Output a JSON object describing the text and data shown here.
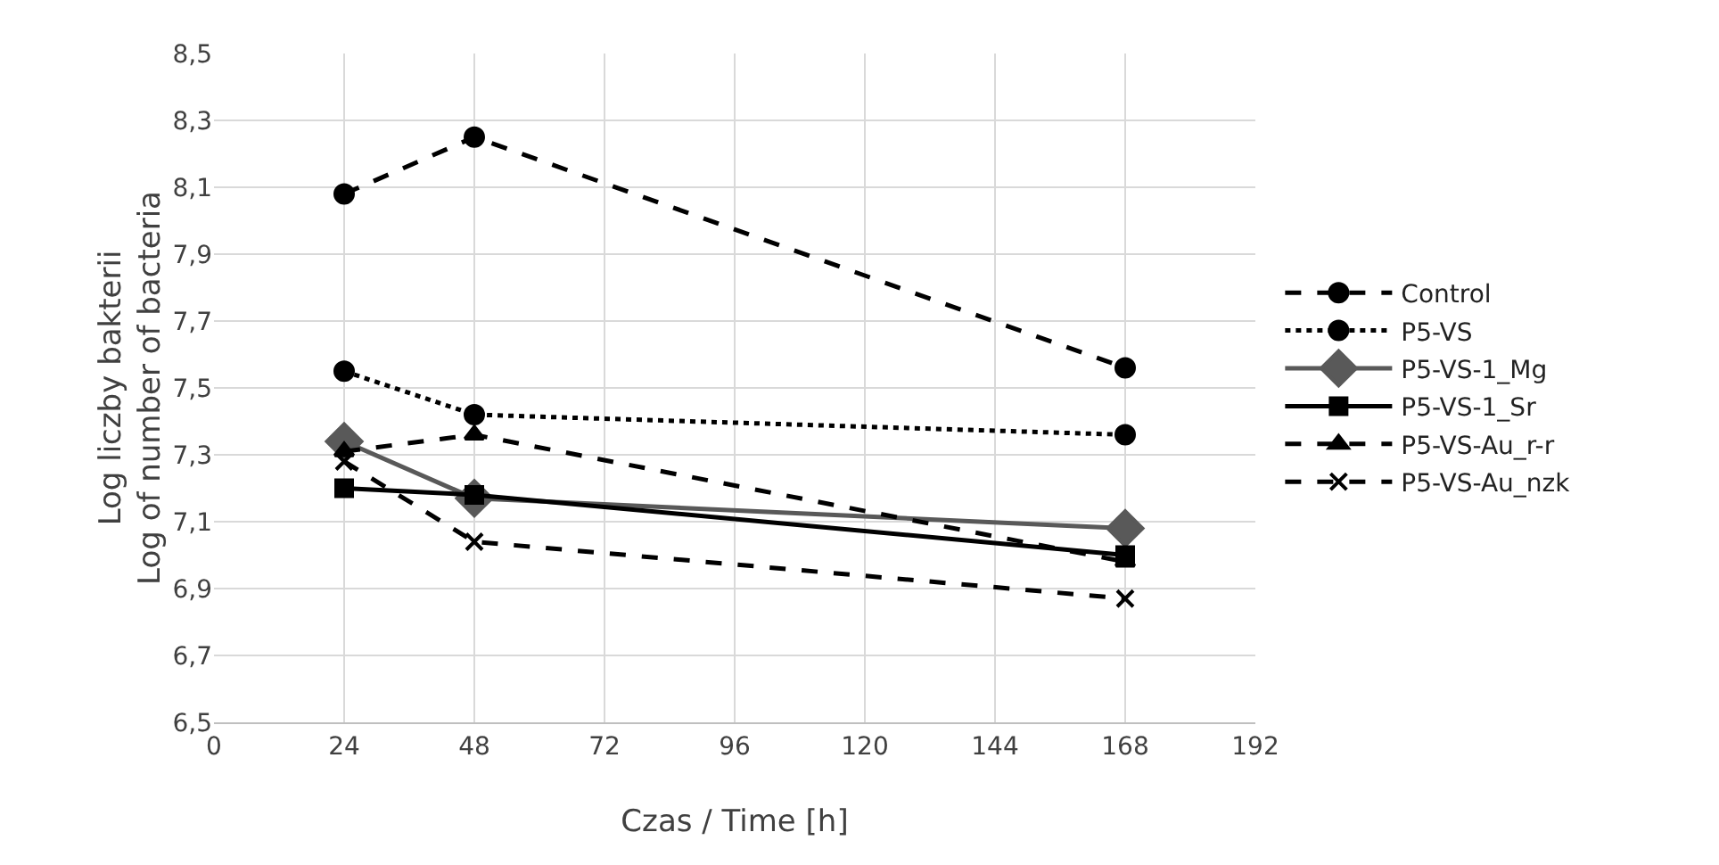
{
  "chart_data": {
    "type": "line",
    "xlabel": "Czas / Time [h]",
    "ylabel": "Log liczby bakterii\nLog of number of bacteria",
    "x": [
      24,
      48,
      168
    ],
    "xlim": [
      0,
      192
    ],
    "xticks": [
      0,
      24,
      48,
      72,
      96,
      120,
      144,
      168,
      192
    ],
    "ylim": [
      6.5,
      8.5
    ],
    "yticks": [
      {
        "value": 6.5,
        "label": "6,5"
      },
      {
        "value": 6.7,
        "label": "6,7"
      },
      {
        "value": 6.9,
        "label": "6,9"
      },
      {
        "value": 7.1,
        "label": "7,1"
      },
      {
        "value": 7.3,
        "label": "7,3"
      },
      {
        "value": 7.5,
        "label": "7,5"
      },
      {
        "value": 7.7,
        "label": "7,7"
      },
      {
        "value": 7.9,
        "label": "7,9"
      },
      {
        "value": 8.1,
        "label": "8,1"
      },
      {
        "value": 8.3,
        "label": "8,3"
      },
      {
        "value": 8.5,
        "label": "8,5"
      }
    ],
    "grid": true,
    "legend": "right",
    "series": [
      {
        "name": "Control",
        "color": "#000000",
        "values": [
          8.08,
          8.25,
          7.56
        ],
        "marker": "circle",
        "line_style": "dashed"
      },
      {
        "name": "P5-VS",
        "color": "#000000",
        "values": [
          7.55,
          7.42,
          7.36
        ],
        "marker": "circle",
        "line_style": "dotted"
      },
      {
        "name": "P5-VS-1_Mg",
        "color": "#595959",
        "values": [
          7.34,
          7.17,
          7.08
        ],
        "marker": "diamond",
        "line_style": "solid"
      },
      {
        "name": "P5-VS-1_Sr",
        "color": "#000000",
        "values": [
          7.2,
          7.18,
          7.0
        ],
        "marker": "square",
        "line_style": "solid"
      },
      {
        "name": "P5-VS-Au_r-r",
        "color": "#000000",
        "values": [
          7.31,
          7.36,
          6.98
        ],
        "marker": "triangle",
        "line_style": "dashed"
      },
      {
        "name": "P5-VS-Au_nzk",
        "color": "#000000",
        "values": [
          7.28,
          7.04,
          6.87
        ],
        "marker": "cross",
        "line_style": "dashed"
      }
    ]
  }
}
